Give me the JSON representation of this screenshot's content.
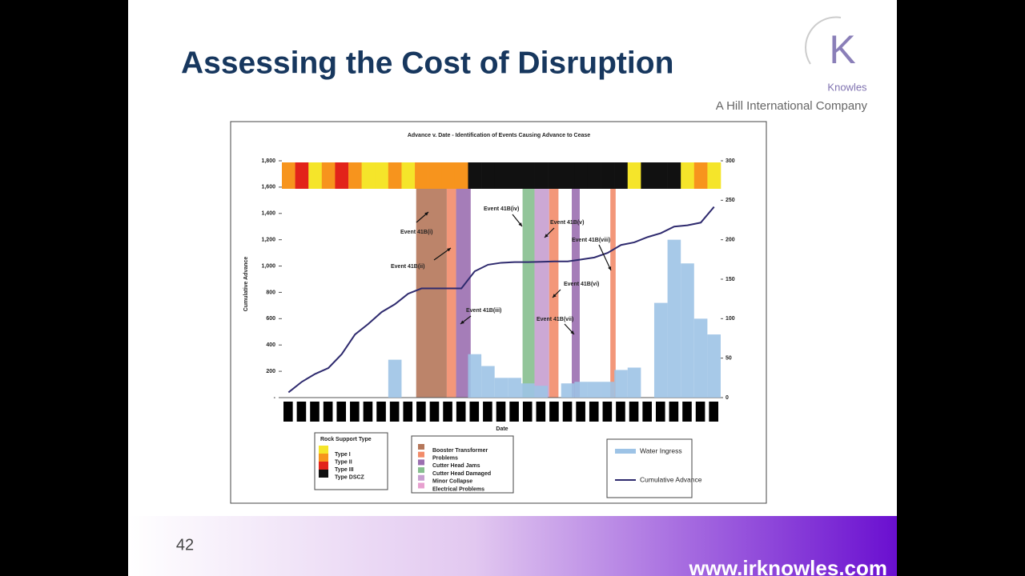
{
  "slide": {
    "title": "Assessing the Cost of Disruption",
    "logo_letter": "K",
    "logo_name": "Knowles",
    "company": "A Hill International Company",
    "page_number": "42",
    "url": "www.irknowles.com"
  },
  "chart_data": {
    "type": "combo",
    "title": "Advance v. Date - Identification of Events Causing Advance to Cease",
    "y_label": "Cumulative Advance",
    "x_label": "Date",
    "categories": [
      null,
      null,
      null,
      null,
      null,
      null,
      null,
      null,
      null,
      null,
      null,
      null,
      null,
      null,
      null,
      null,
      null,
      null,
      null,
      null,
      null,
      null,
      null,
      null,
      null,
      null,
      null,
      null,
      null,
      null,
      null,
      null,
      null
    ],
    "ylim": [
      0,
      1800
    ],
    "yticks": [
      {
        "value": 0,
        "label": "-"
      },
      200,
      400,
      600,
      800,
      {
        "value": 1000,
        "label": "1,000"
      },
      {
        "value": 1200,
        "label": "1,200"
      },
      {
        "value": 1400,
        "label": "1,400"
      },
      {
        "value": 1600,
        "label": "1,600"
      },
      {
        "value": 1800,
        "label": "1,800"
      }
    ],
    "y2lim": [
      0,
      300
    ],
    "y2ticks": [
      0,
      50,
      100,
      150,
      200,
      250,
      300
    ],
    "series": [
      {
        "name": "Water Ingress",
        "type": "bar",
        "axis": "y2",
        "color": "#9dc3e6",
        "values": [
          0,
          0,
          0,
          0,
          0,
          0,
          0,
          0,
          48,
          0,
          0,
          0,
          0,
          0,
          55,
          40,
          25,
          25,
          18,
          15,
          0,
          18,
          20,
          20,
          20,
          35,
          38,
          0,
          120,
          200,
          170,
          100,
          80
        ]
      },
      {
        "name": "Cumulative Advance",
        "type": "line",
        "color": "#2e2a6e",
        "values": [
          40,
          120,
          180,
          225,
          330,
          480,
          560,
          650,
          710,
          790,
          830,
          830,
          830,
          830,
          960,
          1010,
          1025,
          1030,
          1030,
          1032,
          1035,
          1035,
          1050,
          1065,
          1100,
          1160,
          1180,
          1220,
          1250,
          1300,
          1310,
          1330,
          1450
        ]
      }
    ],
    "rock_support_title": "Rock Support Type",
    "rock_support_types": [
      {
        "name": "Type I",
        "color": "#f5e52a"
      },
      {
        "name": "Type II",
        "color": "#f7941d"
      },
      {
        "name": "Type III",
        "color": "#e2231a"
      },
      {
        "name": "Type DSCZ",
        "color": "#111111"
      }
    ],
    "rock_support": [
      "Type II",
      "Type III",
      "Type I",
      "Type II",
      "Type III",
      "Type II",
      "Type I",
      "Type I",
      "Type II",
      "Type I",
      "Type II",
      "Type II",
      "Type II",
      "Type II",
      "Type DSCZ",
      "Type DSCZ",
      "Type DSCZ",
      "Type DSCZ",
      "Type DSCZ",
      "Type DSCZ",
      "Type DSCZ",
      "Type DSCZ",
      "Type DSCZ",
      "Type DSCZ",
      "Type DSCZ",
      "Type DSCZ",
      "Type I",
      "Type DSCZ",
      "Type DSCZ",
      "Type DSCZ",
      "Type I",
      "Type II",
      "Type I"
    ],
    "event_types": [
      {
        "name": "Booster Transformer",
        "color": "#b5775a"
      },
      {
        "name": "Problems",
        "color": "#f28c6a"
      },
      {
        "name": "Cutter Head Jams",
        "color": "#9b6fb0"
      },
      {
        "name": "Cutter Head Damaged",
        "color": "#86bf8f"
      },
      {
        "name": "Minor Collapse",
        "color": "#c79fd0"
      },
      {
        "name": "Electrical Problems",
        "color": "#e7a0cf"
      }
    ],
    "spans": [
      {
        "type": 0,
        "from": 10.1,
        "to": 12.4
      },
      {
        "type": 1,
        "from": 12.4,
        "to": 13.1
      },
      {
        "type": 2,
        "from": 13.1,
        "to": 14.2
      },
      {
        "type": 3,
        "from": 18.1,
        "to": 19.0
      },
      {
        "type": 4,
        "from": 19.0,
        "to": 20.1
      },
      {
        "type": 1,
        "from": 20.1,
        "to": 20.8
      },
      {
        "type": 2,
        "from": 21.8,
        "to": 22.4
      },
      {
        "type": 1,
        "from": 24.7,
        "to": 25.1
      }
    ],
    "annotations": [
      "Event 41B(i)",
      "Event 41B(ii)",
      "Event 41B(iii)",
      "Event 41B(iv)",
      "Event 41B(v)",
      "Event 41B(vi)",
      "Event 41B(vii)",
      "Event 41B(viii)"
    ]
  }
}
